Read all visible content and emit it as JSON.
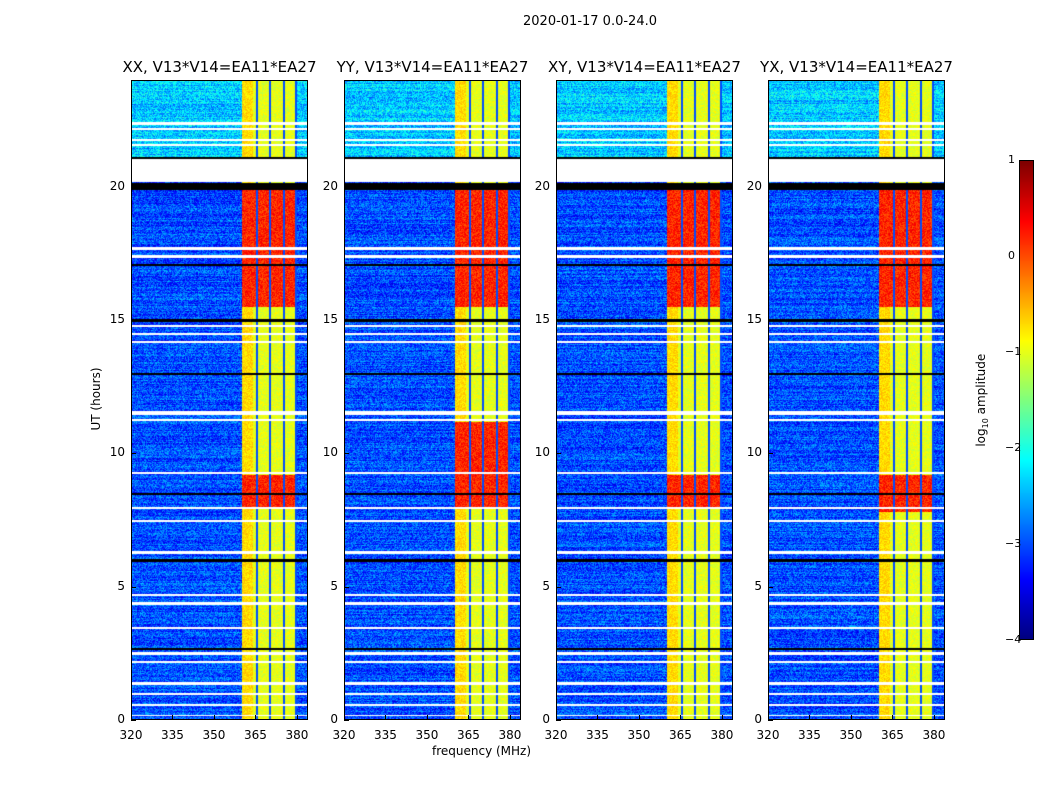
{
  "suptitle": "2020-01-17 0.0-24.0",
  "chart_data": {
    "type": "heatmap",
    "title": "2020-01-17 0.0-24.0",
    "xlabel": "frequency (MHz)",
    "ylabel": "UT (hours)",
    "xlim": [
      320,
      384
    ],
    "ylim": [
      0,
      24
    ],
    "xticks": [
      "320",
      "335",
      "350",
      "365",
      "380"
    ],
    "yticks": [
      "0",
      "5",
      "10",
      "15",
      "20"
    ],
    "panels": [
      {
        "title": "XX, V13*V14=EA11*EA27",
        "high_periods": [
          [
            15.5,
            20.0
          ],
          [
            8.0,
            9.2
          ]
        ]
      },
      {
        "title": "YY, V13*V14=EA11*EA27",
        "high_periods": [
          [
            15.5,
            20.0
          ],
          [
            8.0,
            11.2
          ]
        ]
      },
      {
        "title": "XY, V13*V14=EA11*EA27",
        "high_periods": [
          [
            15.5,
            20.0
          ],
          [
            8.0,
            9.2
          ]
        ]
      },
      {
        "title": "YX, V13*V14=EA11*EA27",
        "high_periods": [
          [
            15.5,
            20.0
          ],
          [
            7.8,
            9.2
          ]
        ]
      }
    ],
    "background_log_amplitude": -3.0,
    "bright_band_mhz": [
      360,
      380
    ],
    "bright_band_log_amplitude": -1.0,
    "high_log_amplitude": 0.2,
    "channel_gaps_mhz": [
      365.3,
      370.2,
      375.0,
      379.6
    ],
    "flagged_white_hours": [
      [
        20.2,
        21.05
      ],
      [
        22.35,
        22.45
      ],
      [
        22.15,
        22.22
      ],
      [
        21.75,
        21.82
      ],
      [
        21.55,
        21.62
      ],
      [
        17.65,
        17.75
      ],
      [
        17.35,
        17.45
      ],
      [
        14.75,
        14.85
      ],
      [
        14.45,
        14.52
      ],
      [
        14.15,
        14.22
      ],
      [
        11.45,
        11.6
      ],
      [
        11.25,
        11.32
      ],
      [
        9.25,
        9.32
      ],
      [
        7.95,
        8.02
      ],
      [
        7.45,
        7.52
      ],
      [
        6.25,
        6.35
      ],
      [
        4.65,
        4.75
      ],
      [
        4.35,
        4.45
      ],
      [
        3.45,
        3.52
      ],
      [
        2.45,
        2.55
      ],
      [
        2.15,
        2.22
      ],
      [
        1.35,
        1.45
      ],
      [
        0.95,
        1.02
      ],
      [
        0.55,
        0.62
      ],
      [
        0.15,
        0.22
      ]
    ],
    "flagged_black_hours": [
      [
        19.9,
        20.15
      ],
      [
        21.05,
        21.12
      ],
      [
        17.05,
        17.12
      ],
      [
        14.95,
        15.05
      ],
      [
        12.95,
        13.02
      ],
      [
        8.45,
        8.52
      ],
      [
        5.95,
        6.05
      ],
      [
        2.65,
        2.72
      ]
    ],
    "colorbar": {
      "label": "log10 amplitude",
      "range": [
        -4,
        1
      ],
      "ticks": [
        "1",
        "0",
        "−1",
        "−2",
        "−3",
        "−4"
      ],
      "colormap": "jet"
    }
  }
}
